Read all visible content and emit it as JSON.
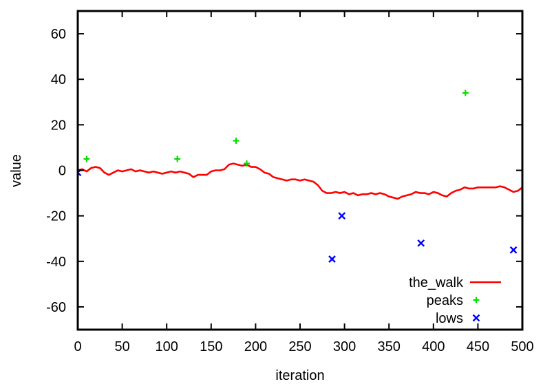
{
  "chart_data": {
    "type": "line",
    "xlabel": "iteration",
    "ylabel": "value",
    "xlim": [
      0,
      500
    ],
    "ylim": [
      -70,
      70
    ],
    "x_ticks": [
      0,
      50,
      100,
      150,
      200,
      250,
      300,
      350,
      400,
      450,
      500
    ],
    "y_ticks": [
      -60,
      -40,
      -20,
      0,
      20,
      40,
      60
    ],
    "grid": false,
    "legend_position": "bottom-right",
    "colors": {
      "the_walk": "#ff0000",
      "peaks": "#00dd00",
      "lows": "#0000ff"
    },
    "series": [
      {
        "name": "the_walk",
        "marker": "line",
        "x": [
          0,
          5,
          10,
          15,
          20,
          25,
          30,
          35,
          40,
          45,
          50,
          55,
          60,
          65,
          70,
          75,
          80,
          85,
          90,
          95,
          100,
          105,
          110,
          115,
          120,
          125,
          130,
          135,
          140,
          145,
          150,
          155,
          160,
          165,
          170,
          175,
          180,
          185,
          190,
          195,
          200,
          205,
          210,
          215,
          220,
          225,
          230,
          235,
          240,
          245,
          250,
          255,
          260,
          265,
          270,
          275,
          280,
          285,
          290,
          295,
          300,
          305,
          310,
          315,
          320,
          325,
          330,
          335,
          340,
          345,
          350,
          355,
          360,
          365,
          370,
          375,
          380,
          385,
          390,
          395,
          400,
          405,
          410,
          415,
          420,
          425,
          430,
          435,
          440,
          445,
          450,
          455,
          460,
          465,
          470,
          475,
          480,
          485,
          490,
          495,
          500
        ],
        "y": [
          0,
          0.5,
          -0.5,
          1,
          1.5,
          1,
          -1,
          -2,
          -1,
          0,
          -0.5,
          0,
          0.5,
          -0.5,
          0,
          -0.5,
          -1,
          -0.5,
          -1,
          -1.5,
          -1,
          -0.5,
          -1,
          -0.5,
          -1,
          -1.5,
          -3,
          -2,
          -2,
          -2,
          -0.5,
          0,
          0,
          0.5,
          2.5,
          3,
          2.5,
          2,
          2.5,
          1.5,
          1.5,
          0.5,
          -1,
          -1.5,
          -3,
          -3.5,
          -4,
          -4.5,
          -4,
          -4,
          -4.5,
          -4,
          -4.5,
          -5,
          -6.5,
          -9,
          -10,
          -10,
          -9.5,
          -10,
          -9.5,
          -10.5,
          -10,
          -11,
          -10.5,
          -10.5,
          -10,
          -10.5,
          -10,
          -10.5,
          -11.5,
          -12,
          -12.5,
          -11.5,
          -11,
          -10.5,
          -9.5,
          -10,
          -10,
          -10.5,
          -9.5,
          -10,
          -11,
          -11.5,
          -10,
          -9,
          -8.5,
          -7.5,
          -8,
          -8,
          -7.5,
          -7.5,
          -7.5,
          -7.5,
          -7.5,
          -7,
          -7.5,
          -8.5,
          -9.5,
          -9,
          -7.5
        ]
      },
      {
        "name": "peaks",
        "marker": "plus",
        "x": [
          10,
          112,
          178,
          190,
          436
        ],
        "y": [
          5,
          5,
          13,
          3,
          34
        ]
      },
      {
        "name": "lows",
        "marker": "x",
        "x": [
          0,
          286,
          297,
          386,
          490
        ],
        "y": [
          -1,
          -39,
          -20,
          -32,
          -35
        ]
      }
    ]
  }
}
